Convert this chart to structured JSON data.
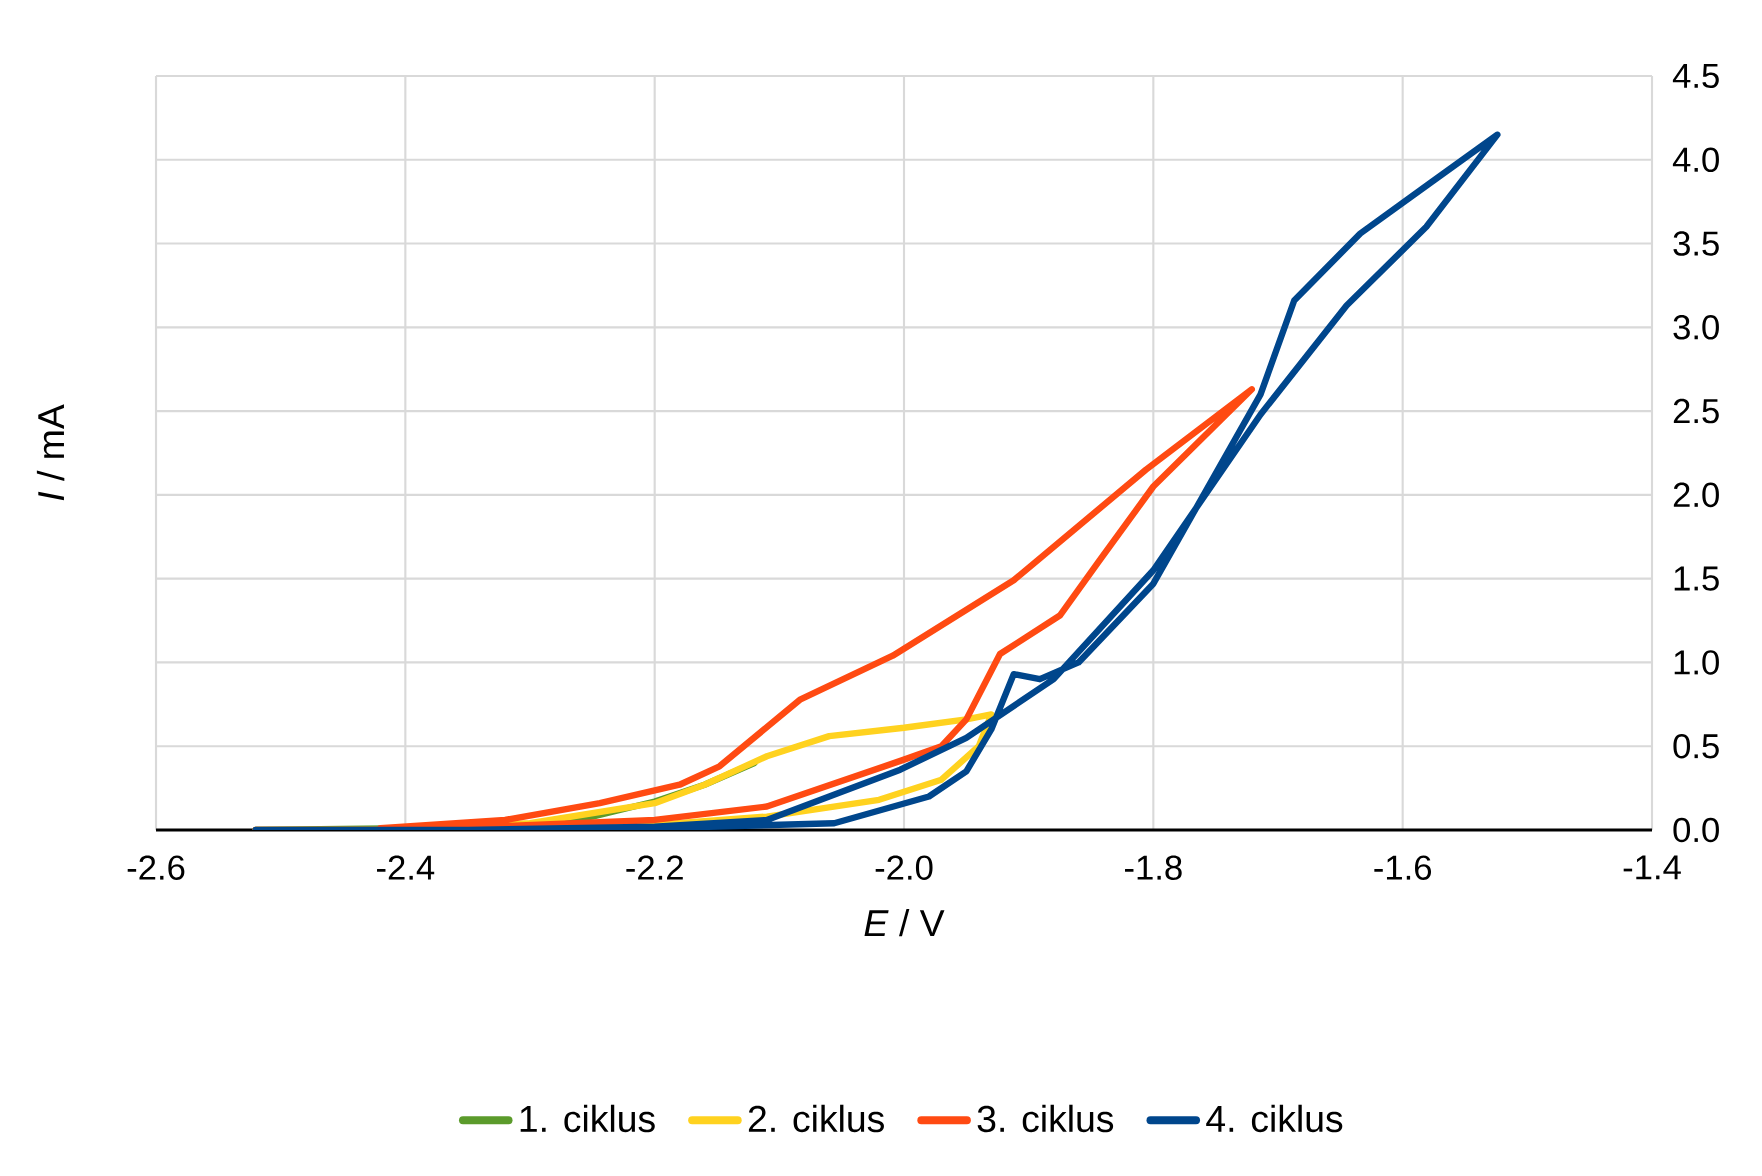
{
  "chart_data": {
    "type": "line",
    "xlabel": "*E* / V",
    "ylabel": "*I* / mA",
    "xlim": [
      -2.6,
      -1.4
    ],
    "xticks": [
      {
        "value": -2.6,
        "label": "-2.6"
      },
      {
        "value": -2.4,
        "label": "-2.4"
      },
      {
        "value": -2.2,
        "label": "-2.2"
      },
      {
        "value": -2,
        "label": "-2.0"
      },
      {
        "value": -1.8,
        "label": "-1.8"
      },
      {
        "value": -1.6,
        "label": "-1.6"
      },
      {
        "value": -1.4,
        "label": "-1.4"
      }
    ],
    "ylim": [
      0,
      4.5
    ],
    "yticks": [
      {
        "value": 0,
        "label": "0.0"
      },
      {
        "value": 0.5,
        "label": "0.5"
      },
      {
        "value": 1,
        "label": "1.0"
      },
      {
        "value": 1.5,
        "label": "1.5"
      },
      {
        "value": 2,
        "label": "2.0"
      },
      {
        "value": 2.5,
        "label": "2.5"
      },
      {
        "value": 3,
        "label": "3.0"
      },
      {
        "value": 3.5,
        "label": "3.5"
      },
      {
        "value": 4,
        "label": "4.0"
      },
      {
        "value": 4.5,
        "label": "4.5"
      }
    ],
    "grid": true,
    "legend": "bottom",
    "marker": "none",
    "line_style": "solid",
    "series": [
      {
        "name": "1. ciklus",
        "color": "#5b9b2b",
        "x": [
          -2.52,
          -2.4,
          -2.3,
          -2.25,
          -2.2,
          -2.16,
          -2.12
        ],
        "values": [
          0,
          0.01,
          0.03,
          0.08,
          0.17,
          0.27,
          0.4
        ]
      },
      {
        "name": "2. ciklus",
        "color": "#ffd21f",
        "x": [
          -2.52,
          -2.4,
          -2.3,
          -2.2,
          -2.11,
          -2.02,
          -1.97,
          -1.94,
          -1.93,
          -1.95,
          -2.0,
          -2.06,
          -2.11,
          -2.16,
          -2.2,
          -2.3,
          -2.4
        ],
        "values": [
          0,
          0,
          0.01,
          0.03,
          0.08,
          0.18,
          0.3,
          0.5,
          0.69,
          0.66,
          0.61,
          0.56,
          0.44,
          0.27,
          0.16,
          0.04,
          0.01
        ]
      },
      {
        "name": "3. ciklus",
        "color": "#ff4a12",
        "x": [
          -2.52,
          -2.4,
          -2.2,
          -2.11,
          -2.0,
          -1.97,
          -1.95,
          -1.923,
          -1.875,
          -1.843,
          -1.8,
          -1.721,
          -1.806,
          -1.912,
          -2.009,
          -2.083,
          -2.148,
          -2.18,
          -2.244,
          -2.32,
          -2.42
        ],
        "values": [
          0,
          0,
          0.06,
          0.14,
          0.42,
          0.5,
          0.66,
          1.05,
          1.28,
          1.61,
          2.05,
          2.63,
          2.15,
          1.49,
          1.04,
          0.78,
          0.38,
          0.27,
          0.16,
          0.06,
          0.01
        ]
      },
      {
        "name": "4. ciklus",
        "color": "#00468c",
        "x": [
          -2.52,
          -2.3,
          -2.2,
          -2.056,
          -1.98,
          -1.95,
          -1.93,
          -1.912,
          -1.891,
          -1.86,
          -1.8,
          -1.714,
          -1.687,
          -1.634,
          -1.58,
          -1.524,
          -1.581,
          -1.645,
          -1.714,
          -1.8,
          -1.88,
          -1.95,
          -2.003,
          -2.11,
          -2.2,
          -2.35
        ],
        "values": [
          0,
          0,
          0.01,
          0.04,
          0.2,
          0.35,
          0.6,
          0.93,
          0.9,
          1.0,
          1.47,
          2.6,
          3.16,
          3.56,
          3.85,
          4.15,
          3.6,
          3.13,
          2.48,
          1.55,
          0.9,
          0.55,
          0.36,
          0.06,
          0.02,
          0
        ]
      }
    ]
  }
}
